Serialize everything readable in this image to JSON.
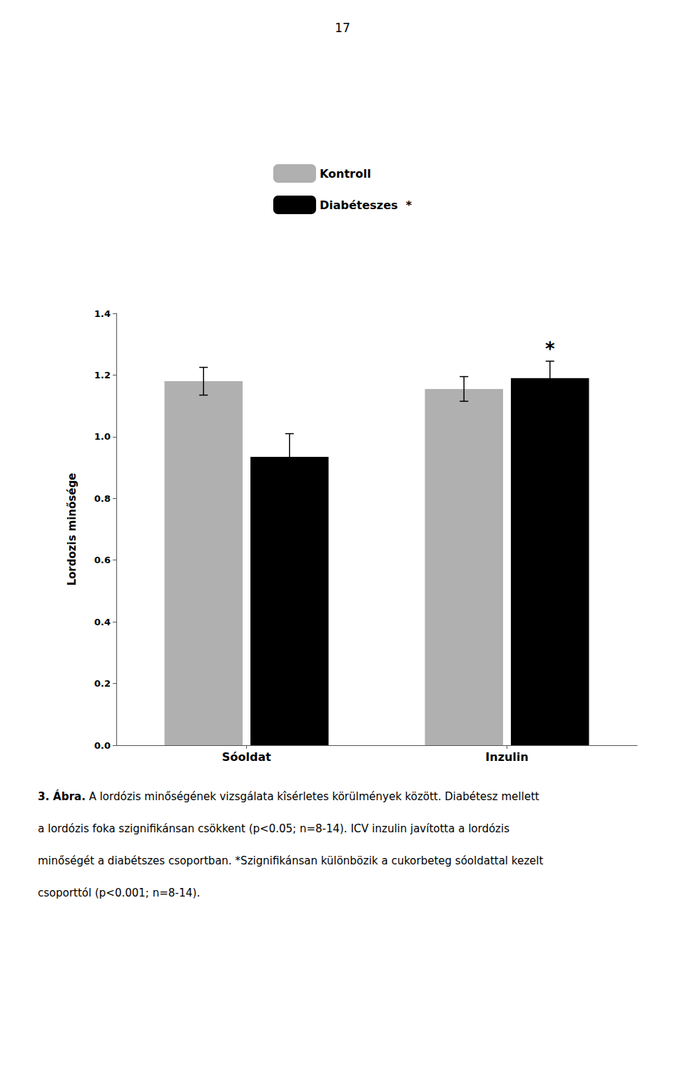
{
  "chart_data": {
    "type": "bar",
    "page_number": "17",
    "categories": [
      "Sóoldat",
      "Inzulin"
    ],
    "series": [
      {
        "name": "Kontroll",
        "color": "#b0b0b0",
        "values": [
          1.18,
          1.155
        ],
        "errors": [
          0.045,
          0.04
        ]
      },
      {
        "name": "Diabéteszes  *",
        "color": "#000000",
        "values": [
          0.935,
          1.19
        ],
        "errors": [
          0.075,
          0.055
        ]
      }
    ],
    "ylabel": "Lordozis minősége",
    "ylim": [
      0.0,
      1.4
    ],
    "yticks": [
      {
        "value": 0.0,
        "label": "0.0"
      },
      0.2,
      0.4,
      0.6,
      0.8,
      {
        "value": 1.0,
        "label": "1.0"
      },
      1.2,
      1.4
    ],
    "grid": false,
    "legend": "top",
    "annotations": [
      {
        "text": "*",
        "category": "Inzulin",
        "series": "Diabéteszes  *"
      }
    ],
    "caption_title": "3. Ábra.",
    "caption": [
      " A lordózis minőségének vizsgálata kîsérletes körülmények között. Diabétesz mellett",
      "a lordózis foka szignifikánsan csökkent (p<0.05; n=8-14). ICV inzulin javította a lordózis",
      "minőségét a diabétszes csoportban. *Szignifikánsan különbözik a cukorbeteg sóoldattal kezelt",
      "csoporttól (p<0.001; n=8-14)."
    ]
  }
}
